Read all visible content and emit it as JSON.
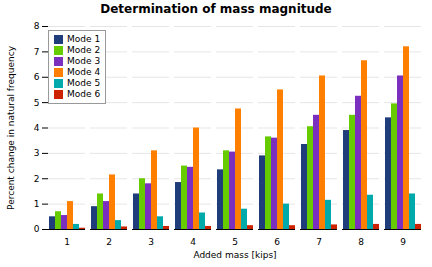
{
  "chart_data": {
    "type": "bar",
    "title": "Determination of mass magnitude",
    "xlabel": "Added mass [kips]",
    "ylabel": "Percent change in natural frequency",
    "categories": [
      1,
      2,
      3,
      4,
      5,
      6,
      7,
      8,
      9
    ],
    "series": [
      {
        "name": "Mode 1",
        "color": "#1F3D7A",
        "values": [
          0.5,
          0.9,
          1.4,
          1.85,
          2.35,
          2.9,
          3.35,
          3.9,
          4.4
        ]
      },
      {
        "name": "Mode 2",
        "color": "#66CC00",
        "values": [
          0.7,
          1.4,
          2.0,
          2.5,
          3.1,
          3.65,
          4.05,
          4.5,
          4.95
        ]
      },
      {
        "name": "Mode 3",
        "color": "#7B2FBE",
        "values": [
          0.55,
          1.1,
          1.8,
          2.45,
          3.05,
          3.6,
          4.5,
          5.25,
          6.05
        ]
      },
      {
        "name": "Mode 4",
        "color": "#FF8000",
        "values": [
          1.1,
          2.15,
          3.1,
          4.0,
          4.75,
          5.5,
          6.05,
          6.65,
          7.2
        ]
      },
      {
        "name": "Mode 5",
        "color": "#00AAAA",
        "values": [
          0.2,
          0.35,
          0.5,
          0.65,
          0.8,
          1.0,
          1.15,
          1.35,
          1.4
        ]
      },
      {
        "name": "Mode 6",
        "color": "#CC2200",
        "values": [
          0.05,
          0.1,
          0.12,
          0.12,
          0.15,
          0.15,
          0.18,
          0.2,
          0.2
        ]
      }
    ],
    "ylim": [
      0,
      8
    ],
    "yticks": [
      0,
      1,
      2,
      3,
      4,
      5,
      6,
      7,
      8
    ],
    "grid": true,
    "legend": "upper left"
  }
}
